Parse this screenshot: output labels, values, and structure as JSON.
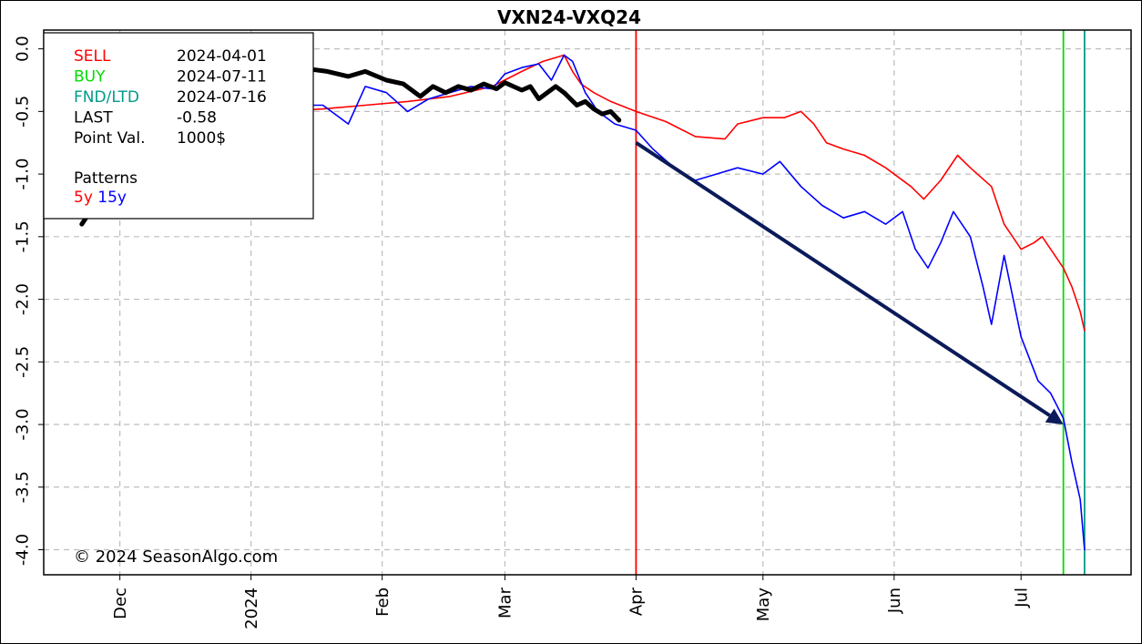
{
  "chart_data": {
    "type": "line",
    "title": "VXN24-VXQ24",
    "xlabel": "",
    "ylabel": "",
    "ylim": [
      -4.2,
      0.15
    ],
    "xlim": [
      "2023-11-13",
      "2024-07-27"
    ],
    "y_ticks": [
      0.0,
      -0.5,
      -1.0,
      -1.5,
      -2.0,
      -2.5,
      -3.0,
      -3.5,
      -4.0
    ],
    "y_tick_labels": [
      "0.0",
      "-0.5",
      "-1.0",
      "-1.5",
      "-2.0",
      "-2.5",
      "-3.0",
      "-3.5",
      "-4.0"
    ],
    "x_ticks": [
      {
        "label": "Dec",
        "date": "2023-12-01"
      },
      {
        "label": "2024",
        "date": "2024-01-01"
      },
      {
        "label": "Feb",
        "date": "2024-02-01"
      },
      {
        "label": "Mar",
        "date": "2024-03-01"
      },
      {
        "label": "Apr",
        "date": "2024-04-01"
      },
      {
        "label": "May",
        "date": "2024-05-01"
      },
      {
        "label": "Jun",
        "date": "2024-06-01"
      },
      {
        "label": "Jul",
        "date": "2024-07-01"
      }
    ],
    "grid": true,
    "legend": {
      "placement": "top-left",
      "rows": [
        {
          "label": "SELL",
          "value": "2024-04-01",
          "color": "#ff0000"
        },
        {
          "label": "BUY",
          "value": "2024-07-11",
          "color": "#00dd00"
        },
        {
          "label": "FND/LTD",
          "value": "2024-07-16",
          "color": "#009a8a"
        },
        {
          "label": "LAST",
          "value": "-0.58",
          "color": "#000000"
        },
        {
          "label": "Point Val.",
          "value": "1000$",
          "color": "#000000"
        }
      ],
      "patterns_heading": "Patterns",
      "patterns": [
        {
          "label": "5y",
          "color": "#ff0000"
        },
        {
          "label": "15y",
          "color": "#0000ff"
        }
      ]
    },
    "vertical_markers": [
      {
        "name": "SELL",
        "date": "2024-04-01",
        "color": "#ff0000"
      },
      {
        "name": "BUY",
        "date": "2024-07-11",
        "color": "#00dd00"
      },
      {
        "name": "FND/LTD",
        "date": "2024-07-16",
        "color": "#009a8a"
      }
    ],
    "arrow": {
      "from": {
        "date": "2024-04-01",
        "y": -0.75
      },
      "to": {
        "date": "2024-07-11",
        "y": -3.0
      },
      "color": "#0a1a5a"
    },
    "series": [
      {
        "color": "#000000",
        "style": "thick",
        "x": [
          "2023-11-22",
          "2023-12-10",
          "2023-12-28",
          "2024-01-05",
          "2024-01-12",
          "2024-01-19",
          "2024-01-24",
          "2024-01-28",
          "2024-02-02",
          "2024-02-06",
          "2024-02-10",
          "2024-02-13",
          "2024-02-16",
          "2024-02-19",
          "2024-02-22",
          "2024-02-25",
          "2024-02-28",
          "2024-03-01",
          "2024-03-03",
          "2024-03-05",
          "2024-03-07",
          "2024-03-09",
          "2024-03-11",
          "2024-03-13",
          "2024-03-15",
          "2024-03-18",
          "2024-03-20",
          "2024-03-22",
          "2024-03-24",
          "2024-03-26",
          "2024-03-28"
        ],
        "y": [
          -1.4,
          -0.5,
          -0.3,
          -0.2,
          -0.15,
          -0.18,
          -0.22,
          -0.18,
          -0.25,
          -0.28,
          -0.38,
          -0.3,
          -0.35,
          -0.3,
          -0.33,
          -0.28,
          -0.32,
          -0.27,
          -0.3,
          -0.33,
          -0.3,
          -0.4,
          -0.35,
          -0.3,
          -0.35,
          -0.45,
          -0.42,
          -0.48,
          -0.52,
          -0.5,
          -0.57
        ]
      },
      {
        "name": "5y",
        "color": "#ff0000",
        "style": "thin",
        "x": [
          "2023-12-28",
          "2024-01-08",
          "2024-01-18",
          "2024-01-28",
          "2024-02-07",
          "2024-02-17",
          "2024-02-27",
          "2024-03-05",
          "2024-03-10",
          "2024-03-15",
          "2024-03-17",
          "2024-03-19",
          "2024-03-22",
          "2024-03-26",
          "2024-04-01",
          "2024-04-08",
          "2024-04-15",
          "2024-04-22",
          "2024-04-25",
          "2024-05-01",
          "2024-05-06",
          "2024-05-10",
          "2024-05-13",
          "2024-05-16",
          "2024-05-20",
          "2024-05-25",
          "2024-05-30",
          "2024-06-05",
          "2024-06-08",
          "2024-06-12",
          "2024-06-16",
          "2024-06-19",
          "2024-06-24",
          "2024-06-27",
          "2024-07-01",
          "2024-07-04",
          "2024-07-06",
          "2024-07-08",
          "2024-07-11",
          "2024-07-13",
          "2024-07-15",
          "2024-07-16"
        ],
        "y": [
          -0.45,
          -0.5,
          -0.48,
          -0.45,
          -0.42,
          -0.38,
          -0.3,
          -0.18,
          -0.1,
          -0.05,
          -0.18,
          -0.28,
          -0.35,
          -0.42,
          -0.5,
          -0.58,
          -0.7,
          -0.72,
          -0.6,
          -0.55,
          -0.55,
          -0.5,
          -0.6,
          -0.75,
          -0.8,
          -0.85,
          -0.95,
          -1.1,
          -1.2,
          -1.05,
          -0.85,
          -0.95,
          -1.1,
          -1.4,
          -1.6,
          -1.55,
          -1.5,
          -1.6,
          -1.75,
          -1.9,
          -2.1,
          -2.25
        ]
      },
      {
        "name": "15y",
        "color": "#0000ff",
        "style": "thin",
        "x": [
          "2023-12-28",
          "2024-01-08",
          "2024-01-18",
          "2024-01-24",
          "2024-01-28",
          "2024-02-02",
          "2024-02-07",
          "2024-02-12",
          "2024-02-17",
          "2024-02-22",
          "2024-02-27",
          "2024-03-01",
          "2024-03-05",
          "2024-03-09",
          "2024-03-12",
          "2024-03-15",
          "2024-03-17",
          "2024-03-20",
          "2024-03-23",
          "2024-03-27",
          "2024-04-01",
          "2024-04-05",
          "2024-04-10",
          "2024-04-15",
          "2024-04-20",
          "2024-04-25",
          "2024-05-01",
          "2024-05-05",
          "2024-05-10",
          "2024-05-15",
          "2024-05-20",
          "2024-05-25",
          "2024-05-30",
          "2024-06-03",
          "2024-06-06",
          "2024-06-09",
          "2024-06-12",
          "2024-06-15",
          "2024-06-19",
          "2024-06-22",
          "2024-06-24",
          "2024-06-27",
          "2024-07-01",
          "2024-07-05",
          "2024-07-08",
          "2024-07-11",
          "2024-07-13",
          "2024-07-15",
          "2024-07-16"
        ],
        "y": [
          -0.45,
          -0.45,
          -0.45,
          -0.6,
          -0.3,
          -0.35,
          -0.5,
          -0.4,
          -0.35,
          -0.3,
          -0.32,
          -0.2,
          -0.15,
          -0.12,
          -0.25,
          -0.05,
          -0.1,
          -0.35,
          -0.5,
          -0.6,
          -0.65,
          -0.8,
          -0.95,
          -1.05,
          -1.0,
          -0.95,
          -1.0,
          -0.9,
          -1.1,
          -1.25,
          -1.35,
          -1.3,
          -1.4,
          -1.3,
          -1.6,
          -1.75,
          -1.55,
          -1.3,
          -1.5,
          -1.9,
          -2.2,
          -1.65,
          -2.3,
          -2.65,
          -2.75,
          -2.95,
          -3.3,
          -3.6,
          -4.0
        ]
      }
    ]
  },
  "copyright": "© 2024 SeasonAlgo.com"
}
